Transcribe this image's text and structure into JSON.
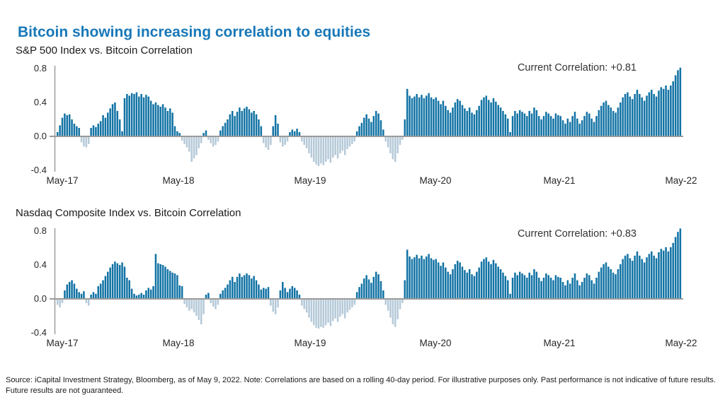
{
  "page_title": "Bitcoin showing increasing correlation to equities",
  "source_note": "Source: iCapital Investment Strategy, Bloomberg, as of May 9, 2022.  Note: Correlations are based on a rolling 40-day period. For illustrative purposes only. Past performance is not indicative of future results. Future results are not guaranteed.",
  "colors": {
    "title_blue": "#1878b8",
    "bar_positive": "#1172a4",
    "bar_negative": "#b5c9d8",
    "axis_gray": "#9b9b9b",
    "text_dark": "#262626"
  },
  "chart_data": [
    {
      "type": "bar",
      "title": "S&P 500 Index vs. Bitcoin Correlation",
      "annotation": "Current Correlation: +0.81",
      "current_correlation": 0.81,
      "ylim": [
        -0.4,
        0.8
      ],
      "y_tick_labels": [
        "0.8",
        "0.4",
        "0.0",
        "-0.4"
      ],
      "x_tick_labels": [
        "May-17",
        "May-18",
        "May-19",
        "May-20",
        "May-21",
        "May-22"
      ],
      "grid": false,
      "legend": "none",
      "values": [
        0.05,
        0.13,
        0.22,
        0.27,
        0.25,
        0.26,
        0.2,
        0.15,
        0.12,
        0.1,
        -0.07,
        -0.12,
        -0.13,
        -0.09,
        0.1,
        0.13,
        0.11,
        0.15,
        0.18,
        0.25,
        0.22,
        0.28,
        0.33,
        0.38,
        0.4,
        0.3,
        0.2,
        0.06,
        0.45,
        0.5,
        0.48,
        0.51,
        0.5,
        0.52,
        0.47,
        0.5,
        0.46,
        0.49,
        0.47,
        0.42,
        0.38,
        0.4,
        0.37,
        0.35,
        0.38,
        0.34,
        0.3,
        0.33,
        0.28,
        0.12,
        0.06,
        0.04,
        -0.05,
        -0.09,
        -0.13,
        -0.18,
        -0.3,
        -0.26,
        -0.22,
        -0.14,
        -0.08,
        0.04,
        0.07,
        -0.04,
        -0.08,
        -0.12,
        -0.1,
        -0.06,
        0.07,
        0.12,
        0.16,
        0.2,
        0.26,
        0.3,
        0.24,
        0.29,
        0.34,
        0.3,
        0.33,
        0.35,
        0.32,
        0.28,
        0.3,
        0.26,
        0.2,
        0.12,
        -0.08,
        -0.13,
        -0.16,
        -0.1,
        0.12,
        0.25,
        0.15,
        -0.07,
        -0.12,
        -0.1,
        -0.06,
        0.05,
        0.08,
        0.06,
        0.09,
        0.05,
        -0.06,
        -0.1,
        -0.14,
        -0.2,
        -0.25,
        -0.3,
        -0.33,
        -0.35,
        -0.32,
        -0.34,
        -0.3,
        -0.27,
        -0.31,
        -0.25,
        -0.22,
        -0.26,
        -0.2,
        -0.17,
        -0.22,
        -0.15,
        -0.12,
        -0.09,
        -0.06,
        0.06,
        0.12,
        0.16,
        0.22,
        0.26,
        0.21,
        0.17,
        0.24,
        0.3,
        0.27,
        0.19,
        0.08,
        -0.06,
        -0.13,
        -0.2,
        -0.27,
        -0.3,
        -0.2,
        -0.1,
        -0.04,
        0.2,
        0.56,
        0.48,
        0.45,
        0.47,
        0.5,
        0.46,
        0.49,
        0.45,
        0.48,
        0.51,
        0.46,
        0.44,
        0.46,
        0.42,
        0.38,
        0.42,
        0.36,
        0.31,
        0.28,
        0.34,
        0.4,
        0.44,
        0.42,
        0.37,
        0.33,
        0.3,
        0.34,
        0.28,
        0.26,
        0.31,
        0.36,
        0.43,
        0.46,
        0.48,
        0.43,
        0.4,
        0.45,
        0.41,
        0.37,
        0.34,
        0.3,
        0.26,
        0.21,
        0.05,
        0.24,
        0.3,
        0.27,
        0.31,
        0.29,
        0.27,
        0.24,
        0.3,
        0.27,
        0.34,
        0.31,
        0.24,
        0.2,
        0.24,
        0.29,
        0.27,
        0.24,
        0.21,
        0.27,
        0.25,
        0.24,
        0.19,
        0.15,
        0.21,
        0.17,
        0.24,
        0.29,
        0.21,
        0.15,
        0.19,
        0.24,
        0.29,
        0.27,
        0.21,
        0.17,
        0.24,
        0.31,
        0.36,
        0.4,
        0.42,
        0.37,
        0.34,
        0.3,
        0.28,
        0.34,
        0.4,
        0.46,
        0.5,
        0.52,
        0.47,
        0.44,
        0.5,
        0.55,
        0.5,
        0.46,
        0.42,
        0.48,
        0.52,
        0.55,
        0.5,
        0.47,
        0.54,
        0.58,
        0.56,
        0.6,
        0.55,
        0.6,
        0.65,
        0.72,
        0.78,
        0.81
      ]
    },
    {
      "type": "bar",
      "title": "Nasdaq Composite Index vs. Bitcoin Correlation",
      "annotation": "Current Correlation: +0.83",
      "current_correlation": 0.83,
      "ylim": [
        -0.4,
        0.8
      ],
      "y_tick_labels": [
        "0.8",
        "0.4",
        "0.0",
        "-0.4"
      ],
      "x_tick_labels": [
        "May-17",
        "May-18",
        "May-19",
        "May-20",
        "May-21",
        "May-22"
      ],
      "grid": false,
      "legend": "none",
      "values": [
        -0.07,
        -0.1,
        -0.05,
        0.1,
        0.17,
        0.2,
        0.22,
        0.18,
        0.12,
        0.08,
        0.06,
        0.09,
        -0.05,
        -0.08,
        0.05,
        0.08,
        0.06,
        0.15,
        0.18,
        0.22,
        0.27,
        0.32,
        0.37,
        0.41,
        0.44,
        0.42,
        0.4,
        0.43,
        0.38,
        0.25,
        0.22,
        0.12,
        0.06,
        0.04,
        0.05,
        0.07,
        0.05,
        0.1,
        0.13,
        0.11,
        0.15,
        0.53,
        0.42,
        0.41,
        0.4,
        0.38,
        0.35,
        0.33,
        0.31,
        0.3,
        0.28,
        0.16,
        0.15,
        -0.06,
        -0.1,
        -0.14,
        -0.12,
        -0.16,
        -0.2,
        -0.25,
        -0.3,
        -0.18,
        0.05,
        0.07,
        -0.05,
        -0.09,
        -0.12,
        -0.07,
        0.06,
        0.1,
        0.13,
        0.17,
        0.22,
        0.26,
        0.2,
        0.26,
        0.3,
        0.26,
        0.28,
        0.3,
        0.28,
        0.24,
        0.27,
        0.22,
        0.17,
        0.11,
        0.13,
        0.12,
        0.14,
        -0.08,
        -0.15,
        -0.18,
        -0.1,
        0.1,
        0.2,
        0.13,
        0.08,
        0.12,
        0.15,
        0.13,
        0.1,
        0.05,
        -0.08,
        -0.12,
        -0.16,
        -0.22,
        -0.27,
        -0.31,
        -0.34,
        -0.35,
        -0.33,
        -0.34,
        -0.31,
        -0.28,
        -0.32,
        -0.26,
        -0.23,
        -0.27,
        -0.21,
        -0.18,
        -0.23,
        -0.16,
        -0.13,
        -0.1,
        -0.07,
        0.08,
        0.14,
        0.18,
        0.24,
        0.28,
        0.23,
        0.19,
        0.26,
        0.32,
        0.29,
        0.21,
        0.1,
        -0.07,
        -0.14,
        -0.22,
        -0.3,
        -0.33,
        -0.24,
        -0.12,
        -0.05,
        0.22,
        0.58,
        0.5,
        0.47,
        0.49,
        0.52,
        0.48,
        0.51,
        0.47,
        0.5,
        0.53,
        0.48,
        0.46,
        0.47,
        0.43,
        0.39,
        0.43,
        0.37,
        0.32,
        0.29,
        0.35,
        0.41,
        0.45,
        0.43,
        0.38,
        0.34,
        0.31,
        0.35,
        0.29,
        0.27,
        0.32,
        0.37,
        0.44,
        0.47,
        0.49,
        0.44,
        0.41,
        0.46,
        0.42,
        0.38,
        0.35,
        0.31,
        0.27,
        0.22,
        0.06,
        0.25,
        0.31,
        0.28,
        0.32,
        0.3,
        0.28,
        0.25,
        0.31,
        0.28,
        0.35,
        0.32,
        0.25,
        0.21,
        0.25,
        0.3,
        0.28,
        0.25,
        0.22,
        0.28,
        0.26,
        0.25,
        0.2,
        0.16,
        0.22,
        0.18,
        0.25,
        0.3,
        0.22,
        0.16,
        0.2,
        0.25,
        0.3,
        0.28,
        0.22,
        0.18,
        0.25,
        0.32,
        0.37,
        0.41,
        0.43,
        0.38,
        0.35,
        0.31,
        0.29,
        0.35,
        0.41,
        0.47,
        0.51,
        0.53,
        0.48,
        0.45,
        0.51,
        0.56,
        0.51,
        0.47,
        0.43,
        0.49,
        0.53,
        0.56,
        0.51,
        0.48,
        0.55,
        0.59,
        0.57,
        0.61,
        0.56,
        0.61,
        0.66,
        0.73,
        0.79,
        0.83
      ]
    }
  ]
}
